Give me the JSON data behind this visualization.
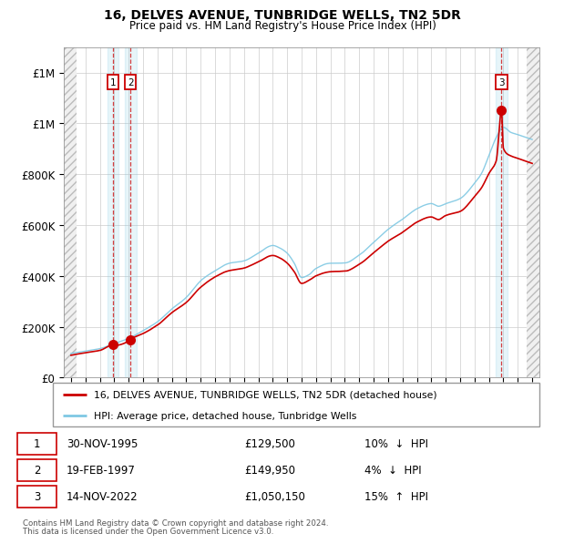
{
  "title": "16, DELVES AVENUE, TUNBRIDGE WELLS, TN2 5DR",
  "subtitle": "Price paid vs. HM Land Registry's House Price Index (HPI)",
  "legend_line1": "16, DELVES AVENUE, TUNBRIDGE WELLS, TN2 5DR (detached house)",
  "legend_line2": "HPI: Average price, detached house, Tunbridge Wells",
  "transactions": [
    {
      "id": 1,
      "date": "30-NOV-1995",
      "price": 129500,
      "pct": "10%",
      "dir": "↓",
      "year": 1995.92
    },
    {
      "id": 2,
      "date": "19-FEB-1997",
      "price": 149950,
      "pct": "4%",
      "dir": "↓",
      "year": 1997.13
    },
    {
      "id": 3,
      "date": "14-NOV-2022",
      "price": 1050150,
      "pct": "15%",
      "dir": "↑",
      "year": 2022.87
    }
  ],
  "footer": "Contains HM Land Registry data © Crown copyright and database right 2024.\nThis data is licensed under the Open Government Licence v3.0.",
  "hpi_color": "#7ec8e3",
  "price_color": "#cc0000",
  "xlim": [
    1992.5,
    2025.5
  ],
  "ylim": [
    0,
    1300000
  ],
  "yticks": [
    0,
    200000,
    400000,
    600000,
    800000,
    1000000,
    1200000
  ],
  "xticks": [
    1993,
    1994,
    1995,
    1996,
    1997,
    1998,
    1999,
    2000,
    2001,
    2002,
    2003,
    2004,
    2005,
    2006,
    2007,
    2008,
    2009,
    2010,
    2011,
    2012,
    2013,
    2014,
    2015,
    2016,
    2017,
    2018,
    2019,
    2020,
    2021,
    2022,
    2023,
    2024,
    2025
  ],
  "hpi_keypoints": [
    [
      1993.0,
      95000
    ],
    [
      1994.0,
      105000
    ],
    [
      1995.0,
      115000
    ],
    [
      1996.0,
      135000
    ],
    [
      1997.0,
      155000
    ],
    [
      1998.0,
      185000
    ],
    [
      1999.0,
      220000
    ],
    [
      2000.0,
      270000
    ],
    [
      2001.0,
      315000
    ],
    [
      2002.0,
      380000
    ],
    [
      2003.0,
      420000
    ],
    [
      2004.0,
      450000
    ],
    [
      2005.0,
      460000
    ],
    [
      2006.0,
      490000
    ],
    [
      2007.0,
      520000
    ],
    [
      2007.5,
      510000
    ],
    [
      2008.0,
      490000
    ],
    [
      2008.5,
      450000
    ],
    [
      2009.0,
      395000
    ],
    [
      2009.5,
      405000
    ],
    [
      2010.0,
      430000
    ],
    [
      2011.0,
      450000
    ],
    [
      2012.0,
      450000
    ],
    [
      2013.0,
      480000
    ],
    [
      2014.0,
      530000
    ],
    [
      2015.0,
      580000
    ],
    [
      2016.0,
      620000
    ],
    [
      2017.0,
      660000
    ],
    [
      2018.0,
      680000
    ],
    [
      2018.5,
      670000
    ],
    [
      2019.0,
      680000
    ],
    [
      2020.0,
      700000
    ],
    [
      2021.0,
      760000
    ],
    [
      2021.5,
      800000
    ],
    [
      2022.0,
      870000
    ],
    [
      2022.5,
      940000
    ],
    [
      2023.0,
      980000
    ],
    [
      2023.5,
      960000
    ],
    [
      2024.0,
      950000
    ],
    [
      2024.5,
      940000
    ],
    [
      2025.0,
      930000
    ]
  ],
  "red_keypoints": [
    [
      1993.0,
      88000
    ],
    [
      1994.0,
      98000
    ],
    [
      1995.0,
      108000
    ],
    [
      1995.92,
      129500
    ],
    [
      1996.0,
      126000
    ],
    [
      1997.0,
      143000
    ],
    [
      1997.13,
      149950
    ],
    [
      1998.0,
      172000
    ],
    [
      1999.0,
      205000
    ],
    [
      2000.0,
      255000
    ],
    [
      2001.0,
      295000
    ],
    [
      2002.0,
      355000
    ],
    [
      2003.0,
      395000
    ],
    [
      2004.0,
      420000
    ],
    [
      2005.0,
      430000
    ],
    [
      2006.0,
      455000
    ],
    [
      2007.0,
      480000
    ],
    [
      2007.5,
      470000
    ],
    [
      2008.0,
      450000
    ],
    [
      2008.5,
      415000
    ],
    [
      2009.0,
      370000
    ],
    [
      2009.5,
      382000
    ],
    [
      2010.0,
      400000
    ],
    [
      2011.0,
      415000
    ],
    [
      2012.0,
      418000
    ],
    [
      2013.0,
      445000
    ],
    [
      2014.0,
      490000
    ],
    [
      2015.0,
      535000
    ],
    [
      2016.0,
      570000
    ],
    [
      2017.0,
      610000
    ],
    [
      2018.0,
      630000
    ],
    [
      2018.5,
      620000
    ],
    [
      2019.0,
      635000
    ],
    [
      2020.0,
      650000
    ],
    [
      2021.0,
      710000
    ],
    [
      2021.5,
      745000
    ],
    [
      2022.0,
      800000
    ],
    [
      2022.5,
      850000
    ],
    [
      2022.87,
      1050150
    ],
    [
      2023.0,
      900000
    ],
    [
      2023.5,
      870000
    ],
    [
      2024.0,
      860000
    ],
    [
      2024.5,
      850000
    ],
    [
      2025.0,
      840000
    ]
  ]
}
